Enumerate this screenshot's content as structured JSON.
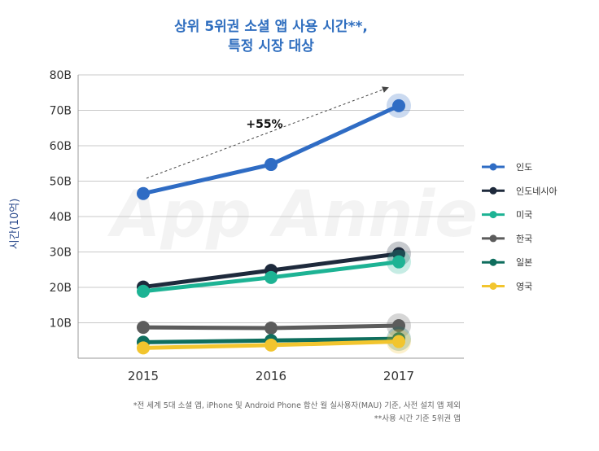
{
  "chart_data": {
    "type": "line",
    "title_lines": [
      "상위 5위권 소셜 앱 사용 시간**,",
      "특정 시장 대상"
    ],
    "ylabel": "시간(10억)",
    "xlabel": "",
    "x": [
      "2015",
      "2016",
      "2017"
    ],
    "ylim": [
      0,
      80
    ],
    "yticks": [
      {
        "value": 10,
        "label": "10B"
      },
      {
        "value": 20,
        "label": "20B"
      },
      {
        "value": 30,
        "label": "30B"
      },
      {
        "value": 40,
        "label": "40B"
      },
      {
        "value": 50,
        "label": "50B"
      },
      {
        "value": 60,
        "label": "60B"
      },
      {
        "value": 70,
        "label": "70B"
      },
      {
        "value": 80,
        "label": "80B"
      }
    ],
    "grid": true,
    "legend_position": "right",
    "series": [
      {
        "name": "인도",
        "color": "#2f6cc4",
        "values": [
          46.5,
          54.7,
          71.3
        ]
      },
      {
        "name": "인도네시아",
        "color": "#1e2a3c",
        "values": [
          20.1,
          24.8,
          29.5
        ]
      },
      {
        "name": "미국",
        "color": "#1db394",
        "values": [
          18.9,
          22.8,
          27.2
        ]
      },
      {
        "name": "한국",
        "color": "#5c5c5c",
        "values": [
          8.7,
          8.5,
          9.2
        ]
      },
      {
        "name": "일본",
        "color": "#0f6e5e",
        "values": [
          4.5,
          5.0,
          5.5
        ]
      },
      {
        "name": "영국",
        "color": "#f2c52e",
        "values": [
          2.9,
          3.7,
          4.7
        ]
      }
    ],
    "annotation": {
      "text": "+55%"
    },
    "watermark": "App Annie",
    "footnotes": [
      "*전 세계 5대 소셜 앱, iPhone 및 Android Phone 합산 월 실사용자(MAU) 기준, 사전 설치 앱 제외",
      "**사용 시간 기준 5위권 앱"
    ]
  }
}
